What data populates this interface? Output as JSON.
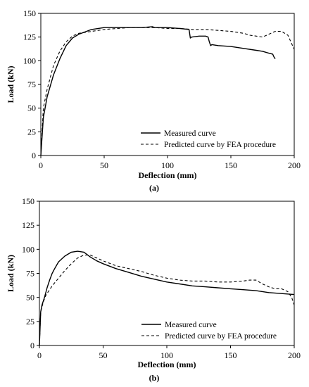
{
  "chart_data": [
    {
      "type": "line",
      "caption": "(a)",
      "xlabel": "Deflection (mm)",
      "ylabel": "Load (kN)",
      "xlim": [
        0,
        200
      ],
      "ylim": [
        0,
        150
      ],
      "xticks": [
        0,
        50,
        100,
        150,
        200
      ],
      "yticks": [
        0,
        25,
        50,
        75,
        100,
        125,
        150
      ],
      "grid": false,
      "legend_position": "bottom-right",
      "series": [
        {
          "name": "Measured curve",
          "style": "solid",
          "x": [
            0,
            2,
            5,
            10,
            15,
            20,
            25,
            30,
            40,
            50,
            60,
            70,
            80,
            88,
            90,
            100,
            110,
            117,
            118,
            119,
            125,
            130,
            132,
            133,
            134,
            135,
            140,
            150,
            160,
            170,
            175,
            180,
            183,
            184,
            185
          ],
          "y": [
            0,
            40,
            62,
            85,
            102,
            116,
            124,
            128,
            133,
            135,
            135,
            135,
            135,
            136,
            135,
            135,
            134,
            133,
            124,
            125,
            126,
            126,
            125,
            120,
            116,
            117,
            116,
            115,
            113,
            111,
            110,
            108,
            107,
            104,
            102
          ]
        },
        {
          "name": "Predicted curve by FEA procedure",
          "style": "dashed",
          "x": [
            0,
            2,
            5,
            10,
            15,
            20,
            25,
            30,
            40,
            50,
            60,
            70,
            80,
            90,
            100,
            110,
            120,
            130,
            140,
            150,
            160,
            165,
            170,
            175,
            180,
            185,
            190,
            195,
            198,
            200
          ],
          "y": [
            0,
            50,
            70,
            95,
            110,
            120,
            126,
            129,
            131,
            133,
            134,
            135,
            135,
            135,
            134,
            134,
            133,
            133,
            132,
            131,
            129,
            127,
            126,
            125,
            128,
            131,
            131,
            127,
            118,
            112
          ]
        }
      ]
    },
    {
      "type": "line",
      "caption": "(b)",
      "xlabel": "Deflection (mm)",
      "ylabel": "Load (kN)",
      "xlim": [
        0,
        200
      ],
      "ylim": [
        0,
        150
      ],
      "xticks": [
        0,
        50,
        100,
        150,
        200
      ],
      "yticks": [
        0,
        25,
        50,
        75,
        100,
        125,
        150
      ],
      "grid": false,
      "legend_position": "bottom-right",
      "series": [
        {
          "name": "Measured curve",
          "style": "solid",
          "x": [
            0,
            1,
            2,
            4,
            6,
            8,
            10,
            12,
            15,
            20,
            25,
            30,
            35,
            40,
            45,
            50,
            60,
            70,
            80,
            90,
            100,
            110,
            120,
            130,
            140,
            150,
            160,
            170,
            180,
            190,
            200
          ],
          "y": [
            0,
            35,
            42,
            50,
            60,
            68,
            75,
            80,
            87,
            93,
            97,
            98,
            97,
            92,
            88,
            85,
            80,
            76,
            72,
            69,
            66,
            64,
            62,
            61,
            60,
            59,
            58,
            57,
            55,
            54,
            53
          ]
        },
        {
          "name": "Predicted curve by FEA procedure",
          "style": "dashed",
          "x": [
            0,
            1,
            3,
            5,
            10,
            15,
            20,
            25,
            30,
            35,
            40,
            50,
            60,
            70,
            80,
            90,
            100,
            110,
            120,
            130,
            140,
            150,
            160,
            165,
            170,
            175,
            180,
            185,
            190,
            195,
            198,
            200
          ],
          "y": [
            0,
            35,
            45,
            52,
            62,
            70,
            78,
            85,
            91,
            94,
            94,
            88,
            83,
            80,
            77,
            73,
            70,
            68,
            67,
            67,
            66,
            66,
            67,
            68,
            68,
            64,
            61,
            59,
            59,
            56,
            50,
            42
          ]
        }
      ]
    }
  ]
}
